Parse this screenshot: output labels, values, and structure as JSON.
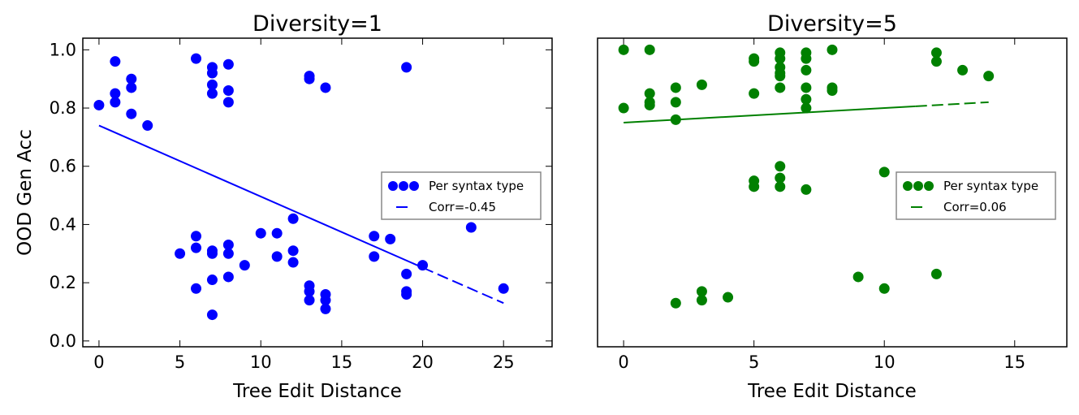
{
  "chart_data": [
    {
      "type": "scatter",
      "title": "Diversity=1",
      "xlabel": "Tree Edit Distance",
      "ylabel": "OOD Gen Acc",
      "xlim": [
        -1,
        28
      ],
      "ylim": [
        -0.02,
        1.04
      ],
      "xticks": [
        0,
        5,
        10,
        15,
        20,
        25
      ],
      "xtick_labels": [
        "0",
        "5",
        "10",
        "15",
        "20",
        "25"
      ],
      "yticks": [
        0.0,
        0.2,
        0.4,
        0.6,
        0.8,
        1.0
      ],
      "ytick_labels": [
        "0.0",
        "0.2",
        "0.4",
        "0.6",
        "0.8",
        "1.0"
      ],
      "color": "#0000ff",
      "legend_position": "center-right",
      "series": [
        {
          "name": "Per syntax type",
          "kind": "points",
          "points": [
            [
              0,
              0.81
            ],
            [
              1,
              0.96
            ],
            [
              1,
              0.85
            ],
            [
              1,
              0.82
            ],
            [
              2,
              0.9
            ],
            [
              2,
              0.87
            ],
            [
              2,
              0.78
            ],
            [
              3,
              0.74
            ],
            [
              5,
              0.3
            ],
            [
              6,
              0.97
            ],
            [
              6,
              0.36
            ],
            [
              6,
              0.32
            ],
            [
              6,
              0.18
            ],
            [
              7,
              0.94
            ],
            [
              7,
              0.92
            ],
            [
              7,
              0.88
            ],
            [
              7,
              0.85
            ],
            [
              7,
              0.31
            ],
            [
              7,
              0.3
            ],
            [
              7,
              0.21
            ],
            [
              7,
              0.09
            ],
            [
              8,
              0.95
            ],
            [
              8,
              0.86
            ],
            [
              8,
              0.82
            ],
            [
              8,
              0.33
            ],
            [
              8,
              0.3
            ],
            [
              8,
              0.22
            ],
            [
              9,
              0.26
            ],
            [
              10,
              0.37
            ],
            [
              11,
              0.37
            ],
            [
              11,
              0.29
            ],
            [
              12,
              0.42
            ],
            [
              12,
              0.31
            ],
            [
              12,
              0.27
            ],
            [
              13,
              0.91
            ],
            [
              13,
              0.9
            ],
            [
              13,
              0.19
            ],
            [
              13,
              0.17
            ],
            [
              13,
              0.14
            ],
            [
              14,
              0.87
            ],
            [
              14,
              0.16
            ],
            [
              14,
              0.14
            ],
            [
              14,
              0.11
            ],
            [
              17,
              0.36
            ],
            [
              17,
              0.29
            ],
            [
              18,
              0.35
            ],
            [
              19,
              0.94
            ],
            [
              19,
              0.23
            ],
            [
              19,
              0.17
            ],
            [
              19,
              0.16
            ],
            [
              20,
              0.26
            ],
            [
              23,
              0.39
            ],
            [
              25,
              0.18
            ]
          ]
        },
        {
          "name": "Corr=-0.45",
          "kind": "fit-line",
          "x": [
            0,
            25
          ],
          "y": [
            0.74,
            0.13
          ]
        }
      ]
    },
    {
      "type": "scatter",
      "title": "Diversity=5",
      "xlabel": "Tree Edit Distance",
      "ylabel": "",
      "xlim": [
        -1,
        17
      ],
      "ylim": [
        -0.02,
        1.04
      ],
      "xticks": [
        0,
        5,
        10,
        15
      ],
      "xtick_labels": [
        "0",
        "5",
        "10",
        "15"
      ],
      "yticks": [],
      "ytick_labels": [],
      "color": "#008000",
      "legend_position": "center-right",
      "series": [
        {
          "name": "Per syntax type",
          "kind": "points",
          "points": [
            [
              0,
              1.0
            ],
            [
              0,
              0.8
            ],
            [
              1,
              1.0
            ],
            [
              1,
              0.85
            ],
            [
              1,
              0.82
            ],
            [
              1,
              0.81
            ],
            [
              2,
              0.87
            ],
            [
              2,
              0.82
            ],
            [
              2,
              0.76
            ],
            [
              2,
              0.13
            ],
            [
              3,
              0.88
            ],
            [
              3,
              0.17
            ],
            [
              3,
              0.14
            ],
            [
              4,
              0.15
            ],
            [
              5,
              0.97
            ],
            [
              5,
              0.96
            ],
            [
              5,
              0.85
            ],
            [
              5,
              0.55
            ],
            [
              5,
              0.53
            ],
            [
              6,
              0.99
            ],
            [
              6,
              0.97
            ],
            [
              6,
              0.94
            ],
            [
              6,
              0.92
            ],
            [
              6,
              0.91
            ],
            [
              6,
              0.87
            ],
            [
              6,
              0.6
            ],
            [
              6,
              0.56
            ],
            [
              6,
              0.53
            ],
            [
              7,
              0.99
            ],
            [
              7,
              0.97
            ],
            [
              7,
              0.93
            ],
            [
              7,
              0.87
            ],
            [
              7,
              0.83
            ],
            [
              7,
              0.8
            ],
            [
              7,
              0.52
            ],
            [
              8,
              1.0
            ],
            [
              8,
              0.87
            ],
            [
              8,
              0.86
            ],
            [
              9,
              0.22
            ],
            [
              10,
              0.58
            ],
            [
              10,
              0.18
            ],
            [
              12,
              0.99
            ],
            [
              12,
              0.96
            ],
            [
              12,
              0.23
            ],
            [
              13,
              0.93
            ],
            [
              14,
              0.91
            ]
          ]
        },
        {
          "name": "Corr=0.06",
          "kind": "fit-line",
          "x": [
            0,
            14
          ],
          "y": [
            0.75,
            0.82
          ]
        }
      ]
    }
  ]
}
